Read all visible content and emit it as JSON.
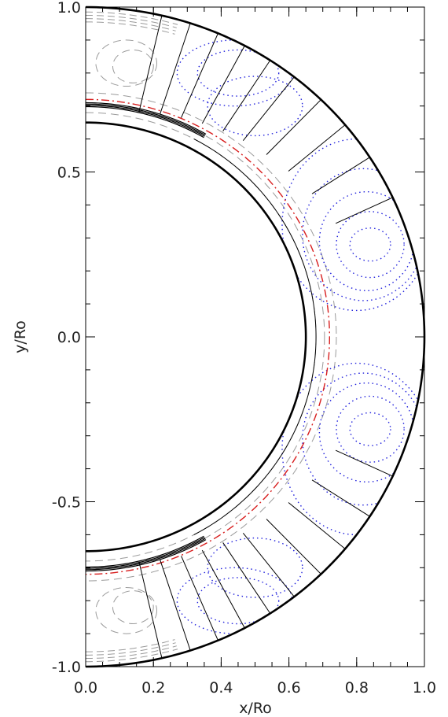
{
  "chart_data": {
    "type": "line",
    "title": "",
    "xlabel": "x/Ro",
    "ylabel": "y/Ro",
    "xlim": [
      0.0,
      1.0
    ],
    "ylim": [
      -1.0,
      1.0
    ],
    "x_ticks": [
      "0.0",
      "0.2",
      "0.4",
      "0.6",
      "0.8",
      "1.0"
    ],
    "y_ticks": [
      "-1.0",
      "-0.5",
      "0.0",
      "0.5",
      "1.0"
    ],
    "grid": false,
    "legend": "none",
    "shell": {
      "outer_radius": 1.0,
      "inner_radius": 0.65
    },
    "tachocline_radius": 0.72,
    "colors": {
      "boundary": "#000000",
      "field_lines": "#000000",
      "tachocline": "#d81e1e",
      "dashed_contours": "#9a9a9a",
      "dotted_contours": "#2222dd"
    },
    "series": [
      {
        "style": "solid-black",
        "description_values": [
          0.2,
          0.3,
          0.4,
          0.55,
          0.7
        ]
      },
      {
        "style": "dash-dot-red",
        "description_values": [
          0.72
        ]
      },
      {
        "style": "dashed-gray",
        "description_values": [
          0.68,
          0.71,
          0.74,
          0.95,
          0.97
        ]
      },
      {
        "style": "dotted-blue",
        "description_values": [
          0.75,
          0.8,
          0.85,
          0.9
        ]
      }
    ]
  }
}
